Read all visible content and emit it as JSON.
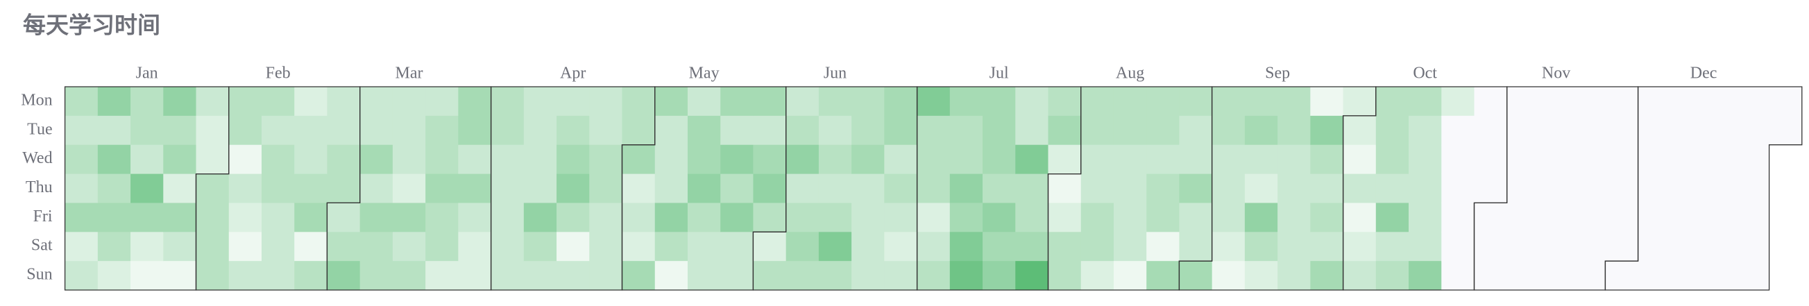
{
  "chart_data": {
    "type": "calendar-heatmap",
    "title": "每天学习时间",
    "day_labels": [
      "Mon",
      "Tue",
      "Wed",
      "Thu",
      "Fri",
      "Sat",
      "Sun"
    ],
    "color_range": [
      "#eef8f1",
      "#5dbd77"
    ],
    "series": [
      {
        "name": "Jan",
        "values": [
          4,
          3,
          4,
          3,
          5,
          2,
          3,
          6,
          3,
          6,
          4,
          5,
          4,
          2,
          4,
          4,
          3,
          7,
          5,
          2,
          1,
          6,
          4,
          5,
          2,
          5,
          3,
          1,
          3,
          2,
          2
        ]
      },
      {
        "name": "Feb",
        "values": [
          4,
          4,
          4,
          4,
          4,
          4,
          1,
          3,
          2,
          1,
          3,
          4,
          3,
          4,
          4,
          3,
          3,
          3,
          2,
          3,
          3,
          4,
          5,
          1,
          4,
          3,
          3,
          4,
          4
        ]
      },
      {
        "name": "Mar",
        "values": [
          3,
          4,
          6,
          3,
          3,
          5,
          3,
          5,
          4,
          4,
          3,
          3,
          3,
          2,
          5,
          3,
          4,
          3,
          4,
          4,
          5,
          4,
          4,
          2,
          5,
          5,
          3,
          5,
          3,
          2,
          2
        ]
      },
      {
        "name": "Apr",
        "values": [
          4,
          4,
          3,
          3,
          3,
          3,
          3,
          3,
          3,
          3,
          3,
          6,
          4,
          3,
          3,
          4,
          5,
          6,
          4,
          1,
          3,
          3,
          3,
          4,
          4,
          3,
          3,
          3,
          4,
          4
        ]
      },
      {
        "name": "May",
        "values": [
          5,
          2,
          3,
          2,
          5,
          5,
          3,
          3,
          3,
          6,
          4,
          1,
          3,
          5,
          5,
          6,
          4,
          3,
          3,
          5,
          3,
          6,
          4,
          6,
          3,
          3,
          5,
          3,
          5,
          6,
          4
        ]
      },
      {
        "name": "Jun",
        "values": [
          2,
          4,
          3,
          4,
          6,
          3,
          4,
          5,
          4,
          4,
          3,
          4,
          3,
          4,
          7,
          4,
          4,
          4,
          5,
          3,
          3,
          3,
          3,
          5,
          5,
          3,
          4,
          3,
          2,
          3
        ]
      },
      {
        "name": "Jul",
        "values": [
          7,
          4,
          4,
          4,
          2,
          3,
          4,
          5,
          4,
          4,
          6,
          5,
          7,
          8,
          5,
          5,
          5,
          4,
          6,
          5,
          6,
          3,
          3,
          7,
          4,
          4,
          5,
          9,
          4,
          5,
          2
        ]
      },
      {
        "name": "Aug",
        "values": [
          1,
          2,
          4,
          4,
          4,
          4,
          3,
          3,
          4,
          4,
          2,
          4,
          4,
          3,
          3,
          3,
          3,
          1,
          4,
          4,
          3,
          4,
          4,
          1,
          5,
          4,
          3,
          3,
          5,
          3,
          3
        ]
      },
      {
        "name": "Sep",
        "values": [
          5,
          4,
          4,
          3,
          3,
          3,
          2,
          1,
          4,
          5,
          3,
          2,
          6,
          4,
          2,
          4,
          4,
          3,
          3,
          3,
          3,
          3,
          1,
          6,
          4,
          3,
          4,
          3,
          5,
          2
        ]
      },
      {
        "name": "Oct",
        "values": [
          2,
          1,
          3,
          1,
          2,
          3,
          4,
          4,
          4,
          3,
          6,
          3,
          4,
          4,
          3,
          3,
          3,
          3,
          3,
          6,
          2,
          null,
          null,
          null,
          null,
          null,
          null,
          null,
          null,
          null,
          null
        ]
      },
      {
        "name": "Nov",
        "values": [
          null,
          null,
          null,
          null,
          null,
          null,
          null,
          null,
          null,
          null,
          null,
          null,
          null,
          null,
          null,
          null,
          null,
          null,
          null,
          null,
          null,
          null,
          null,
          null,
          null,
          null,
          null,
          null,
          null,
          null
        ]
      },
      {
        "name": "Dec",
        "values": [
          null,
          null,
          null,
          null,
          null,
          null,
          null,
          null,
          null,
          null,
          null,
          null,
          null,
          null,
          null,
          null,
          null,
          null,
          null,
          null,
          null,
          null,
          null,
          null,
          null,
          null,
          null,
          null,
          null,
          null,
          null
        ]
      }
    ]
  }
}
